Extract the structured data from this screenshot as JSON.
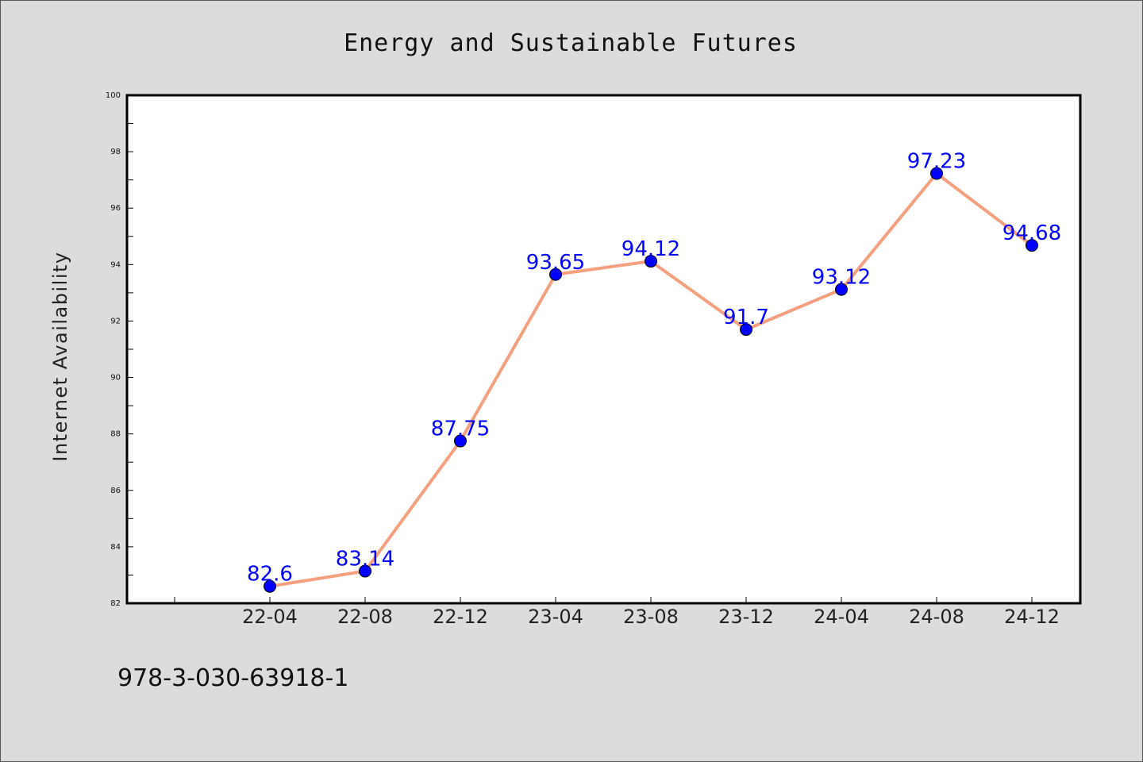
{
  "chart_data": {
    "type": "line",
    "title": "Energy and Sustainable Futures",
    "xlabel": "",
    "ylabel": "Internet Availability",
    "categories": [
      "22-04",
      "22-08",
      "22-12",
      "23-04",
      "23-08",
      "23-12",
      "24-04",
      "24-08",
      "24-12"
    ],
    "series": [
      {
        "values": [
          82.6,
          83.14,
          87.75,
          93.65,
          94.12,
          91.7,
          93.12,
          97.23,
          94.68
        ],
        "data_labels": [
          "82.6",
          "83.14",
          "87.75",
          "93.65",
          "94.12",
          "91.7",
          "93.12",
          "97.23",
          "94.68"
        ],
        "line_color": "#f4a07e",
        "marker_color": "#0000ff",
        "label_color": "#0000ff"
      }
    ],
    "ylim": [
      82,
      100
    ],
    "y_ticks": [
      "82",
      "84",
      "86",
      "88",
      "90",
      "92",
      "94",
      "96",
      "98",
      "100"
    ],
    "grid": false,
    "legend": "none"
  },
  "footer_text": "978-3-030-63918-1"
}
